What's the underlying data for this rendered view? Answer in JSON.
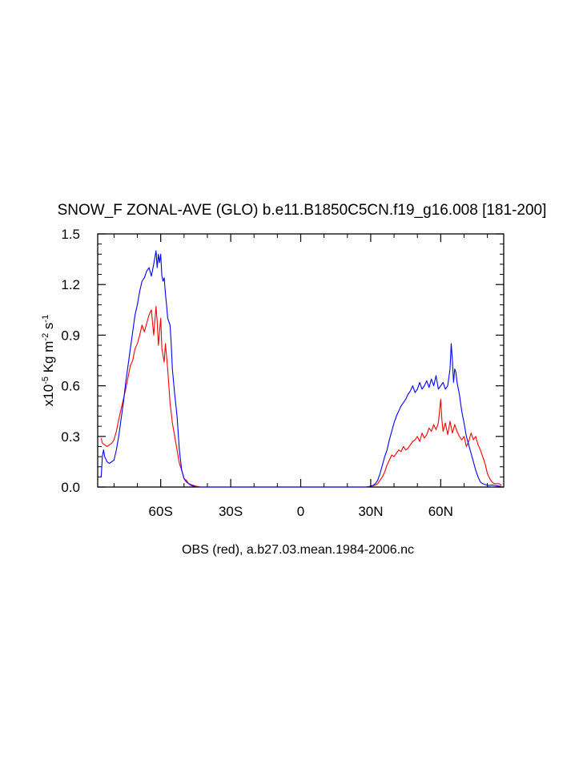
{
  "chart_data": {
    "type": "line",
    "title": "SNOW_F ZONAL-AVE (GLO) b.e11.B1850C5CN.f19_g16.008 [181-200]",
    "xlabel": "OBS (red), a.b27.03.mean.1984-2006.nc",
    "ylabel": {
      "prefix": "x10",
      "exp": "-5",
      "unit1": " Kg m",
      "exp1": "-2",
      "unit2": " s",
      "exp2": "-1"
    },
    "xlim": [
      -87,
      87
    ],
    "ylim": [
      0,
      1.5
    ],
    "xticks": [
      {
        "value": -60,
        "label": "60S"
      },
      {
        "value": -30,
        "label": "30S"
      },
      {
        "value": 0,
        "label": "0"
      },
      {
        "value": 30,
        "label": "30N"
      },
      {
        "value": 60,
        "label": "60N"
      }
    ],
    "yticks": [
      {
        "value": 0.0,
        "label": "0.0"
      },
      {
        "value": 0.3,
        "label": "0.3"
      },
      {
        "value": 0.6,
        "label": "0.6"
      },
      {
        "value": 0.9,
        "label": "0.9"
      },
      {
        "value": 1.2,
        "label": "1.2"
      },
      {
        "value": 1.5,
        "label": "1.5"
      }
    ],
    "series": [
      {
        "name": "b.e11.B1850C5CN.f19_g16.008",
        "color": "#0000ff",
        "x": [
          -85.5,
          -85,
          -84.5,
          -84,
          -83,
          -82,
          -81,
          -80,
          -79,
          -78,
          -77,
          -76,
          -75,
          -74,
          -73,
          -72,
          -71,
          -70,
          -69,
          -68,
          -67,
          -66,
          -65,
          -64,
          -63,
          -62,
          -61.5,
          -61,
          -60.5,
          -60,
          -59.5,
          -59,
          -58.5,
          -58,
          -57.5,
          -57,
          -56.5,
          -56,
          -55.5,
          -55,
          -54,
          -53,
          -52,
          -51,
          -50,
          -49,
          -48,
          -47,
          -46,
          -45,
          -44,
          -43,
          -42,
          -41,
          -40,
          28,
          29,
          30,
          31,
          32,
          33,
          34,
          35,
          36,
          37,
          38,
          39,
          40,
          41,
          42,
          43,
          44,
          45,
          46,
          47,
          48,
          49,
          50,
          51,
          52,
          53,
          54,
          55,
          56,
          57,
          58,
          59,
          60,
          61,
          62,
          63,
          64,
          64.5,
          65,
          65.5,
          66,
          66.5,
          67,
          68,
          69,
          70,
          71,
          72,
          73,
          74,
          75,
          76,
          77,
          78,
          79,
          80,
          81,
          82,
          83,
          84,
          85,
          86
        ],
        "y": [
          0.06,
          0.18,
          0.22,
          0.18,
          0.15,
          0.14,
          0.15,
          0.16,
          0.22,
          0.3,
          0.4,
          0.5,
          0.62,
          0.72,
          0.82,
          0.92,
          1.02,
          1.08,
          1.16,
          1.22,
          1.24,
          1.28,
          1.3,
          1.25,
          1.32,
          1.4,
          1.3,
          1.38,
          1.33,
          1.38,
          1.25,
          1.22,
          1.24,
          1.15,
          1.08,
          1.0,
          0.98,
          0.96,
          0.85,
          0.7,
          0.55,
          0.42,
          0.22,
          0.1,
          0.05,
          0.03,
          0.02,
          0.01,
          0.005,
          0.002,
          0.001,
          0.0,
          0.0,
          0.0,
          0.0,
          0.0,
          0.002,
          0.005,
          0.01,
          0.02,
          0.04,
          0.08,
          0.13,
          0.18,
          0.22,
          0.28,
          0.33,
          0.38,
          0.42,
          0.45,
          0.48,
          0.5,
          0.52,
          0.55,
          0.57,
          0.6,
          0.56,
          0.58,
          0.62,
          0.58,
          0.6,
          0.63,
          0.59,
          0.64,
          0.6,
          0.66,
          0.58,
          0.6,
          0.62,
          0.58,
          0.6,
          0.7,
          0.85,
          0.75,
          0.62,
          0.7,
          0.68,
          0.62,
          0.55,
          0.45,
          0.38,
          0.3,
          0.25,
          0.2,
          0.15,
          0.1,
          0.06,
          0.03,
          0.02,
          0.015,
          0.01,
          0.01,
          0.012,
          0.01,
          0.008,
          0.005,
          0.003
        ]
      },
      {
        "name": "OBS",
        "color": "#ff0000",
        "x": [
          -85.5,
          -85,
          -84,
          -83,
          -82,
          -81,
          -80,
          -79,
          -78,
          -77,
          -76,
          -75,
          -74,
          -73,
          -72,
          -71,
          -70,
          -69,
          -68,
          -67,
          -66,
          -65,
          -64,
          -63,
          -62,
          -61.5,
          -61,
          -60.5,
          -60,
          -59.5,
          -59,
          -58.5,
          -58,
          -57,
          -56,
          -55,
          -54,
          -53,
          -52,
          -51,
          -50,
          -49,
          -48,
          -47,
          -46,
          -45,
          -44,
          -43,
          -42,
          -41,
          -40,
          28,
          29,
          30,
          31,
          32,
          33,
          34,
          35,
          36,
          37,
          38,
          39,
          40,
          41,
          42,
          43,
          44,
          45,
          46,
          47,
          48,
          49,
          50,
          51,
          52,
          53,
          54,
          55,
          56,
          57,
          58,
          59,
          59.5,
          60,
          60.5,
          61,
          62,
          63,
          64,
          65,
          66,
          67,
          68,
          69,
          70,
          71,
          72,
          73,
          74,
          75,
          76,
          77,
          78,
          79,
          80,
          81,
          82,
          83,
          84,
          85,
          86
        ],
        "y": [
          0.29,
          0.26,
          0.25,
          0.24,
          0.25,
          0.26,
          0.28,
          0.33,
          0.4,
          0.46,
          0.52,
          0.58,
          0.65,
          0.72,
          0.75,
          0.82,
          0.85,
          0.9,
          0.96,
          0.92,
          0.97,
          1.02,
          1.05,
          0.9,
          1.07,
          0.98,
          0.84,
          0.92,
          1.0,
          0.82,
          0.78,
          0.74,
          0.85,
          0.7,
          0.5,
          0.38,
          0.3,
          0.22,
          0.14,
          0.1,
          0.05,
          0.04,
          0.02,
          0.015,
          0.01,
          0.005,
          0.003,
          0.0,
          0.0,
          0.0,
          0.0,
          0.0,
          0.002,
          0.004,
          0.008,
          0.012,
          0.02,
          0.04,
          0.06,
          0.09,
          0.13,
          0.16,
          0.19,
          0.18,
          0.2,
          0.22,
          0.21,
          0.24,
          0.22,
          0.23,
          0.25,
          0.27,
          0.28,
          0.3,
          0.27,
          0.32,
          0.29,
          0.31,
          0.35,
          0.33,
          0.37,
          0.34,
          0.38,
          0.45,
          0.52,
          0.4,
          0.33,
          0.38,
          0.31,
          0.39,
          0.32,
          0.37,
          0.33,
          0.3,
          0.28,
          0.3,
          0.24,
          0.27,
          0.32,
          0.28,
          0.3,
          0.25,
          0.22,
          0.18,
          0.14,
          0.08,
          0.05,
          0.03,
          0.02,
          0.02,
          0.02,
          0.01
        ]
      }
    ]
  }
}
